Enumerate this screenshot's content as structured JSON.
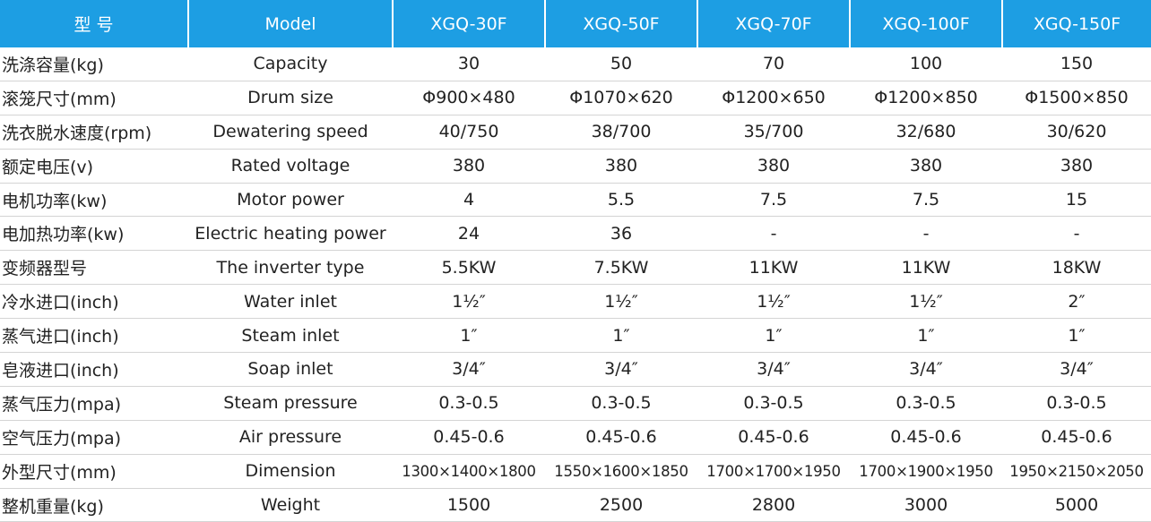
{
  "header": {
    "cells": [
      "型 号",
      "Model",
      "XGQ-30F",
      "XGQ-50F",
      "XGQ-70F",
      "XGQ-100F",
      "XGQ-150F"
    ]
  },
  "rows": [
    {
      "zh": "洗涤容量(kg)",
      "en": "Capacity",
      "values": [
        "30",
        "50",
        "70",
        "100",
        "150"
      ]
    },
    {
      "zh": "滚笼尺寸(mm)",
      "en": "Drum size",
      "values": [
        "Φ900×480",
        "Φ1070×620",
        "Φ1200×650",
        "Φ1200×850",
        "Φ1500×850"
      ]
    },
    {
      "zh": "洗衣脱水速度(rpm)",
      "en": "Dewatering speed",
      "values": [
        "40/750",
        "38/700",
        "35/700",
        "32/680",
        "30/620"
      ]
    },
    {
      "zh": "额定电压(v)",
      "en": "Rated voltage",
      "values": [
        "380",
        "380",
        "380",
        "380",
        "380"
      ]
    },
    {
      "zh": "电机功率(kw)",
      "en": "Motor power",
      "values": [
        "4",
        "5.5",
        "7.5",
        "7.5",
        "15"
      ]
    },
    {
      "zh": "电加热功率(kw)",
      "en": "Electric heating power",
      "values": [
        "24",
        "36",
        "-",
        "-",
        "-"
      ]
    },
    {
      "zh": "变频器型号",
      "en": "The inverter type",
      "values": [
        "5.5KW",
        "7.5KW",
        "11KW",
        "11KW",
        "18KW"
      ]
    },
    {
      "zh": "冷水进口(inch)",
      "en": "Water inlet",
      "values": [
        "1½″",
        "1½″",
        "1½″",
        "1½″",
        "2″"
      ]
    },
    {
      "zh": "蒸气进口(inch)",
      "en": "Steam inlet",
      "values": [
        "1″",
        "1″",
        "1″",
        "1″",
        "1″"
      ]
    },
    {
      "zh": "皂液进口(inch)",
      "en": "Soap inlet",
      "values": [
        "3/4″",
        "3/4″",
        "3/4″",
        "3/4″",
        "3/4″"
      ]
    },
    {
      "zh": "蒸气压力(mpa)",
      "en": "Steam pressure",
      "values": [
        "0.3-0.5",
        "0.3-0.5",
        "0.3-0.5",
        "0.3-0.5",
        "0.3-0.5"
      ]
    },
    {
      "zh": "空气压力(mpa)",
      "en": "Air pressure",
      "values": [
        "0.45-0.6",
        "0.45-0.6",
        "0.45-0.6",
        "0.45-0.6",
        "0.45-0.6"
      ]
    },
    {
      "zh": "外型尺寸(mm)",
      "en": "Dimension",
      "values": [
        "1300×1400×1800",
        "1550×1600×1850",
        "1700×1700×1950",
        "1700×1900×1950",
        "1950×2150×2050"
      ]
    },
    {
      "zh": "整机重量(kg)",
      "en": "Weight",
      "values": [
        "1500",
        "2500",
        "2800",
        "3000",
        "5000"
      ]
    }
  ],
  "colors": {
    "header_bg": "#1d9ee3",
    "header_text": "#ffffff",
    "row_divider": "#d4d4d4"
  }
}
